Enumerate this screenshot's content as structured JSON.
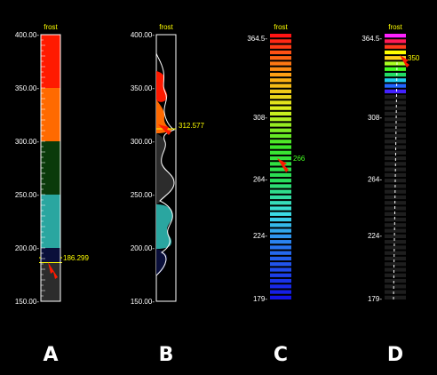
{
  "title": "frost",
  "panels": [
    {
      "label": "A",
      "ticks": [
        "400.00-",
        "350.00-",
        "300.00-",
        "250.00-",
        "200.00-",
        "150.00-"
      ],
      "tick_values": [
        400,
        350,
        300,
        250,
        200,
        150
      ],
      "range": [
        150,
        400
      ],
      "bands": [
        {
          "from": 350,
          "to": 400,
          "color": "#ff1a00"
        },
        {
          "from": 300,
          "to": 350,
          "color": "#ff6a00"
        },
        {
          "from": 250,
          "to": 300,
          "color": "#0a3a0a"
        },
        {
          "from": 200,
          "to": 250,
          "color": "#2aa6a0"
        },
        {
          "from": 186.299,
          "to": 200,
          "color": "#0a0f3a"
        },
        {
          "from": 150,
          "to": 186.299,
          "color": "#2c2c2c"
        }
      ],
      "marker_value": 186.299,
      "marker_text": "186.299"
    },
    {
      "label": "B",
      "ticks": [
        "400.00-",
        "350.00-",
        "300.00-",
        "250.00-",
        "200.00-",
        "150.00-"
      ],
      "tick_values": [
        400,
        350,
        300,
        250,
        200,
        150
      ],
      "range": [
        150,
        400
      ],
      "marker_value": 312.577,
      "marker_text": "312.577"
    },
    {
      "label": "C",
      "ticks": [
        "364.5-",
        "308-",
        "264-",
        "224-",
        "179-"
      ],
      "tick_values": [
        364.5,
        308,
        264,
        224,
        179
      ],
      "range": [
        179,
        364.5
      ],
      "marker_value": 266,
      "marker_text": "266"
    },
    {
      "label": "D",
      "ticks": [
        "364.5-",
        "308-",
        "264-",
        "224-",
        "179-"
      ],
      "tick_values": [
        364.5,
        308,
        264,
        224,
        179
      ],
      "range": [
        179,
        364.5
      ],
      "marker_value": 350,
      "marker_text": "350"
    }
  ],
  "colors": {
    "red": "#ff1a00",
    "orange": "#ff6a00",
    "dark_green": "#0a3a0a",
    "teal": "#2aa6a0",
    "navy": "#0a0f3a",
    "grey": "#2c2c2c",
    "marker_arrow": "#ff1a00"
  }
}
